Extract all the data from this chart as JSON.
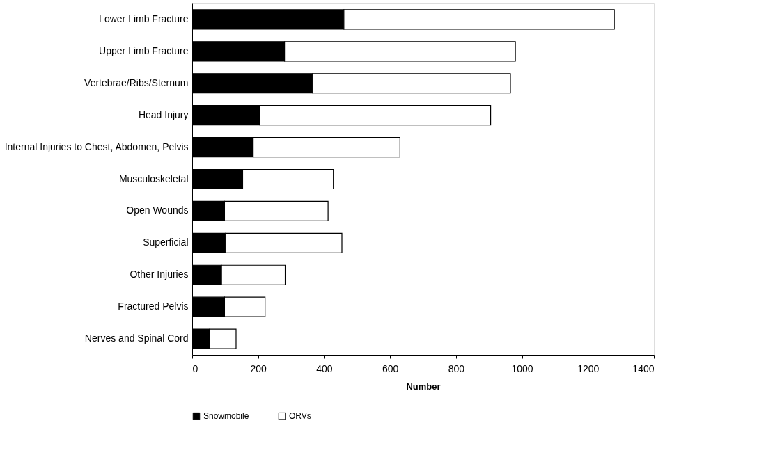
{
  "chart_data": {
    "type": "bar",
    "orientation": "horizontal",
    "stacked": true,
    "xlabel": "Number",
    "categories": [
      "Lower Limb Fracture",
      "Upper Limb Fracture",
      "Vertebrae/Ribs/Sternum",
      "Head Injury",
      "Internal Injuries to Chest, Abdomen, Pelvis",
      "Musculoskeletal",
      "Open Wounds",
      "Superficial",
      "Other Injuries",
      "Fractured Pelvis",
      "Nerves and Spinal Cord"
    ],
    "series": [
      {
        "name": "Snowmobile",
        "color": "#000000",
        "values": [
          460,
          280,
          365,
          205,
          185,
          153,
          98,
          101,
          89,
          98,
          53
        ]
      },
      {
        "name": "ORVs",
        "color": "#ffffff",
        "values": [
          820,
          700,
          600,
          700,
          445,
          275,
          314,
          353,
          193,
          123,
          80
        ]
      }
    ],
    "xlim": [
      0,
      1400
    ],
    "xticks": [
      0,
      200,
      400,
      600,
      800,
      1000,
      1200,
      1400
    ],
    "grid": false,
    "legend": "bottom"
  }
}
